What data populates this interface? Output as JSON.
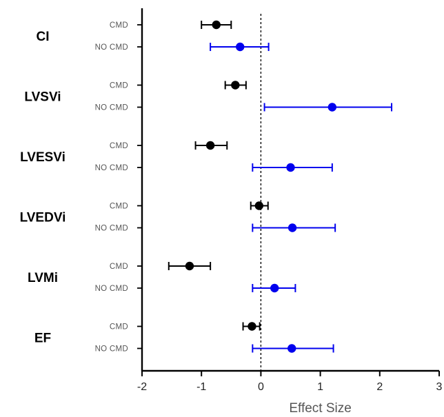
{
  "chart_data": {
    "type": "forest",
    "xlabel": "Effect Size",
    "xlim": [
      -2,
      3
    ],
    "xticks": [
      -2,
      -1,
      0,
      1,
      2,
      3
    ],
    "reference_line": 0,
    "groups": [
      {
        "label": "CI",
        "rows": [
          {
            "label": "CMD",
            "estimate": -0.75,
            "low": -1.0,
            "high": -0.5
          },
          {
            "label": "NO CMD",
            "estimate": -0.35,
            "low": -0.85,
            "high": 0.13
          }
        ]
      },
      {
        "label": "LVSVi",
        "rows": [
          {
            "label": "CMD",
            "estimate": -0.43,
            "low": -0.6,
            "high": -0.25
          },
          {
            "label": "NO CMD",
            "estimate": 1.2,
            "low": 0.06,
            "high": 2.2
          }
        ]
      },
      {
        "label": "LVESVi",
        "rows": [
          {
            "label": "CMD",
            "estimate": -0.85,
            "low": -1.1,
            "high": -0.57
          },
          {
            "label": "NO CMD",
            "estimate": 0.5,
            "low": -0.14,
            "high": 1.2
          }
        ]
      },
      {
        "label": "LVEDVi",
        "rows": [
          {
            "label": "CMD",
            "estimate": -0.03,
            "low": -0.17,
            "high": 0.12
          },
          {
            "label": "NO CMD",
            "estimate": 0.53,
            "low": -0.14,
            "high": 1.25
          }
        ]
      },
      {
        "label": "LVMi",
        "rows": [
          {
            "label": "CMD",
            "estimate": -1.2,
            "low": -1.55,
            "high": -0.85
          },
          {
            "label": "NO CMD",
            "estimate": 0.23,
            "low": -0.14,
            "high": 0.58
          }
        ]
      },
      {
        "label": "EF",
        "rows": [
          {
            "label": "CMD",
            "estimate": -0.15,
            "low": -0.3,
            "high": -0.02
          },
          {
            "label": "NO CMD",
            "estimate": 0.52,
            "low": -0.14,
            "high": 1.22
          }
        ]
      }
    ],
    "series_colors": {
      "CMD": "#000000",
      "NO CMD": "#0000ee"
    }
  }
}
